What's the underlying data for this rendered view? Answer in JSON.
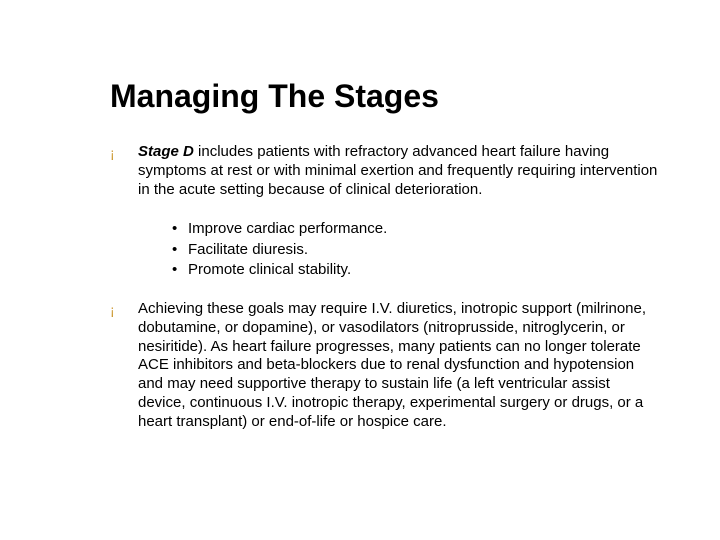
{
  "title": "Managing The Stages",
  "colors": {
    "bullet": "#cc9933",
    "text": "#000000",
    "background": "#ffffff"
  },
  "typography": {
    "title_font": "Arial",
    "title_size_pt": 32,
    "title_weight": "bold",
    "body_font": "Verdana",
    "body_size_pt": 15,
    "line_height": 1.25
  },
  "bullets": {
    "top_level_glyph": "¡",
    "sub_level_glyph": "•"
  },
  "paragraphs": [
    {
      "lead": "Stage D",
      "text": " includes patients with refractory advanced heart failure having symptoms at rest or with minimal exertion and frequently requiring intervention in the acute setting because of clinical deterioration."
    },
    {
      "lead": "",
      "text": "Achieving these goals may require I.V. diuretics, inotropic support (milrinone, dobutamine, or dopamine), or vasodilators (nitroprusside, nitroglycerin, or nesiritide). As heart failure progresses, many patients can no longer tolerate ACE inhibitors and beta-blockers due to renal dysfunction and hypotension and may need supportive therapy to sustain life (a left ventricular assist device, continuous I.V. inotropic therapy, experimental surgery or drugs, or a heart transplant) or end-of-life or hospice care."
    }
  ],
  "sub_items": [
    "Improve cardiac performance.",
    "Facilitate diuresis.",
    "Promote clinical stability."
  ]
}
